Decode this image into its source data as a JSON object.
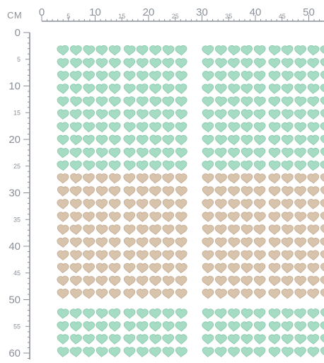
{
  "ruler": {
    "unit_label": "CM",
    "top_major_labels": [
      "0",
      "10",
      "20",
      "30",
      "40",
      "50"
    ],
    "top_minor_labels": [
      "5",
      "15",
      "25",
      "35",
      "45"
    ],
    "left_major_labels": [
      "0",
      "10",
      "20",
      "30",
      "40",
      "50",
      "60"
    ],
    "left_minor_labels": [
      "5",
      "15",
      "25",
      "35",
      "45",
      "55"
    ],
    "color": "#8a9099",
    "range_cm": {
      "x": [
        0,
        53
      ],
      "y": [
        0,
        61
      ]
    }
  },
  "pattern": {
    "motif": "heart-icon",
    "colors": {
      "mint": "#a6dcc4",
      "mint_edge": "#88c8ab",
      "tan": "#d8c4ad",
      "tan_edge": "#c4ab91"
    },
    "bands": [
      {
        "color": "mint",
        "rows": 10
      },
      {
        "color": "tan",
        "rows": 10
      },
      {
        "color": "mint",
        "rows": 5
      }
    ],
    "blocks_per_row": 2,
    "hearts_per_group": 5,
    "groups_per_block": 2
  }
}
